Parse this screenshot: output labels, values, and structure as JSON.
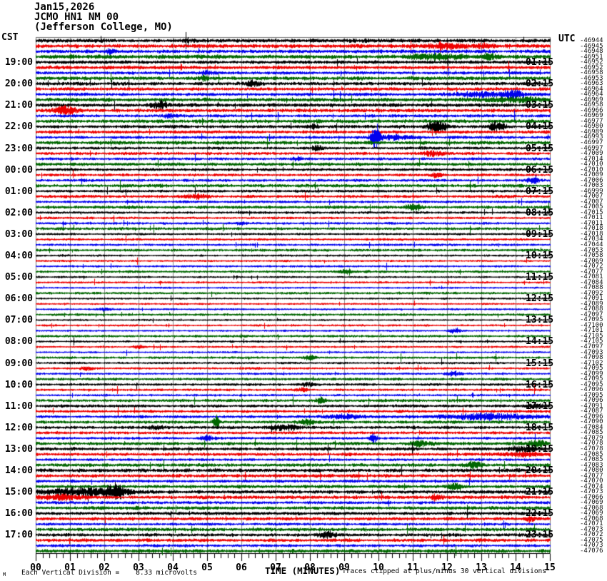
{
  "header": {
    "date_line": "Jan15,2026",
    "station_line": "JCMO HN1 NM 00",
    "location_line": "(Jefferson College, MO)"
  },
  "axes": {
    "left_tz": "CST",
    "right_tz": "UTC"
  },
  "footer": {
    "mark": "M",
    "scale_text": "Each Vertical Division =",
    "scale_value": "8.33 microvolts",
    "x_title": "TIME (MINUTES)",
    "clip_note": "Traces clipped at plus/minus 30 vertical divisions"
  },
  "chart_data": {
    "type": "helicorder-seismogram",
    "title": "JCMO HN1 NM 00 (Jefferson College, MO) Jan15,2026",
    "minutes_per_line": 15,
    "lines": 96,
    "first_line_start_cst": "18:00",
    "trace_color_cycle": [
      "#000000",
      "#ee0000",
      "#0000ee",
      "#006600"
    ],
    "grid_color": "#8a8a8a",
    "border_color": "#777777",
    "x_tick_labels": [
      "00",
      "01",
      "02",
      "03",
      "04",
      "05",
      "06",
      "07",
      "08",
      "09",
      "10",
      "11",
      "12",
      "13",
      "14",
      "15"
    ],
    "left_labels": [
      "19:00",
      "20:00",
      "21:00",
      "22:00",
      "23:00",
      "00:00",
      "01:00",
      "02:00",
      "03:00",
      "04:00",
      "05:00",
      "06:00",
      "07:00",
      "08:00",
      "09:00",
      "10:00",
      "11:00",
      "12:00",
      "13:00",
      "14:00",
      "15:00",
      "16:00",
      "17:00"
    ],
    "right_labels": [
      "01:15",
      "02:15",
      "03:15",
      "04:15",
      "05:15",
      "06:15",
      "07:15",
      "08:15",
      "09:15",
      "10:15",
      "11:15",
      "12:15",
      "13:15",
      "14:15",
      "15:15",
      "16:15",
      "17:15",
      "18:15",
      "19:15",
      "20:15",
      "21:15",
      "22:15",
      "23:15"
    ],
    "right_trace_offsets": [
      -46944,
      -46945,
      -46948,
      -46951,
      -46952,
      -46952,
      -46958,
      -46953,
      -46963,
      -46964,
      -46964,
      -46969,
      -46958,
      -46966,
      -46969,
      -46977,
      -46980,
      -46989,
      -46993,
      -46997,
      -46997,
      -47009,
      -47014,
      -47010,
      -47010,
      -47009,
      -47006,
      -47003,
      -46999,
      -47007,
      -47007,
      -47005,
      -47015,
      -47011,
      -47011,
      -47018,
      -47018,
      -47034,
      -47044,
      -47053,
      -47058,
      -47069,
      -47072,
      -47077,
      -47081,
      -47084,
      -47088,
      -47092,
      -47091,
      -47089,
      -47088,
      -47097,
      -47095,
      -47100,
      -47101,
      -47105,
      -47105,
      -47097,
      -47093,
      -47098,
      -47102,
      -47095,
      -47099,
      -47095,
      -47095,
      -47096,
      -47095,
      -47096,
      -47091,
      -47087,
      -47096,
      -47090,
      -47084,
      -47085,
      -47079,
      -47078,
      -47078,
      -47085,
      -47085,
      -47083,
      -47080,
      -47077,
      -47070,
      -47074,
      -47073,
      -47066,
      -47069,
      -47068,
      -47069,
      -47068,
      -47071,
      -47073,
      -47072,
      -47075,
      -47073,
      -47076
    ],
    "row_noise_amp": [
      2.0,
      2.0,
      1.8,
      2.1,
      1.8,
      1.8,
      1.7,
      2.0,
      1.8,
      1.7,
      1.7,
      2.0,
      1.9,
      1.8,
      1.6,
      1.9,
      1.6,
      1.6,
      1.5,
      1.8,
      1.5,
      1.5,
      1.4,
      1.7,
      1.5,
      1.4,
      1.4,
      1.7,
      1.4,
      1.5,
      1.3,
      1.6,
      1.3,
      1.3,
      1.3,
      1.5,
      1.2,
      1.2,
      1.2,
      1.4,
      1.1,
      1.1,
      1.1,
      1.3,
      1.0,
      1.1,
      1.0,
      1.3,
      1.0,
      1.0,
      1.0,
      1.3,
      1.0,
      1.1,
      1.0,
      1.3,
      1.1,
      1.1,
      1.0,
      1.3,
      1.2,
      1.2,
      1.1,
      1.4,
      1.3,
      1.3,
      1.2,
      1.5,
      1.5,
      1.4,
      1.5,
      1.6,
      1.6,
      1.5,
      1.4,
      1.7,
      1.7,
      1.6,
      1.4,
      1.8,
      1.9,
      1.8,
      1.5,
      1.8,
      1.8,
      1.8,
      1.5,
      1.8,
      1.7,
      1.7,
      1.4,
      1.8,
      1.7,
      1.7,
      1.5,
      1.9
    ],
    "events": [
      {
        "row": 2,
        "minute": 11.9,
        "width_min": 1.1,
        "amp": 4
      },
      {
        "row": 2,
        "minute": 13.1,
        "width_min": 0.4,
        "amp": 3
      },
      {
        "row": 3,
        "minute": 2.2,
        "width_min": 0.3,
        "amp": 3
      },
      {
        "row": 4,
        "minute": 11.6,
        "width_min": 1.4,
        "amp": 4
      },
      {
        "row": 4,
        "minute": 13.2,
        "width_min": 0.6,
        "amp": 3
      },
      {
        "row": 7,
        "minute": 5.0,
        "width_min": 0.4,
        "amp": 3
      },
      {
        "row": 8,
        "minute": 4.9,
        "width_min": 0.25,
        "amp": 4
      },
      {
        "row": 9,
        "minute": 6.35,
        "width_min": 0.35,
        "amp": 5
      },
      {
        "row": 11,
        "minute": 13.2,
        "width_min": 2.0,
        "amp": 3.5
      },
      {
        "row": 11,
        "minute": 13.9,
        "width_min": 0.4,
        "amp": 6
      },
      {
        "row": 12,
        "minute": 14.0,
        "width_min": 1.6,
        "amp": 3
      },
      {
        "row": 13,
        "minute": 3.6,
        "width_min": 0.5,
        "amp": 5
      },
      {
        "row": 14,
        "minute": 0.8,
        "width_min": 0.7,
        "amp": 6
      },
      {
        "row": 15,
        "minute": 3.9,
        "width_min": 0.4,
        "amp": 3
      },
      {
        "row": 17,
        "minute": 11.7,
        "width_min": 0.5,
        "amp": 10
      },
      {
        "row": 17,
        "minute": 13.45,
        "width_min": 0.4,
        "amp": 8
      },
      {
        "row": 17,
        "minute": 8.1,
        "width_min": 0.3,
        "amp": 4
      },
      {
        "row": 19,
        "minute": 9.9,
        "width_min": 0.22,
        "amp": 24
      },
      {
        "row": 19,
        "minute": 10.4,
        "width_min": 0.9,
        "amp": 4
      },
      {
        "row": 21,
        "minute": 8.2,
        "width_min": 0.3,
        "amp": 4
      },
      {
        "row": 22,
        "minute": 11.6,
        "width_min": 0.6,
        "amp": 4
      },
      {
        "row": 23,
        "minute": 7.6,
        "width_min": 0.3,
        "amp": 3
      },
      {
        "row": 26,
        "minute": 11.7,
        "width_min": 0.4,
        "amp": 3
      },
      {
        "row": 27,
        "minute": 14.5,
        "width_min": 0.3,
        "amp": 5
      },
      {
        "row": 30,
        "minute": 4.7,
        "width_min": 0.5,
        "amp": 4
      },
      {
        "row": 32,
        "minute": 11.0,
        "width_min": 0.4,
        "amp": 4
      },
      {
        "row": 35,
        "minute": 6.0,
        "width_min": 0.3,
        "amp": 2.5
      },
      {
        "row": 44,
        "minute": 9.0,
        "width_min": 0.3,
        "amp": 2.5
      },
      {
        "row": 51,
        "minute": 2.0,
        "width_min": 0.3,
        "amp": 2.5
      },
      {
        "row": 55,
        "minute": 12.2,
        "width_min": 0.3,
        "amp": 3
      },
      {
        "row": 58,
        "minute": 3.0,
        "width_min": 0.3,
        "amp": 2.5
      },
      {
        "row": 60,
        "minute": 8.0,
        "width_min": 0.3,
        "amp": 3
      },
      {
        "row": 62,
        "minute": 1.5,
        "width_min": 0.4,
        "amp": 3
      },
      {
        "row": 63,
        "minute": 12.2,
        "width_min": 0.4,
        "amp": 4
      },
      {
        "row": 65,
        "minute": 8.0,
        "width_min": 0.4,
        "amp": 3
      },
      {
        "row": 66,
        "minute": 7.8,
        "width_min": 0.3,
        "amp": 3
      },
      {
        "row": 68,
        "minute": 8.3,
        "width_min": 0.25,
        "amp": 5
      },
      {
        "row": 69,
        "minute": 14.6,
        "width_min": 0.5,
        "amp": 3
      },
      {
        "row": 71,
        "minute": 13.2,
        "width_min": 2.6,
        "amp": 4.5
      },
      {
        "row": 71,
        "minute": 9.0,
        "width_min": 1.0,
        "amp": 3
      },
      {
        "row": 72,
        "minute": 5.25,
        "width_min": 0.18,
        "amp": 9
      },
      {
        "row": 72,
        "minute": 7.9,
        "width_min": 0.4,
        "amp": 5
      },
      {
        "row": 73,
        "minute": 3.5,
        "width_min": 0.4,
        "amp": 3
      },
      {
        "row": 73,
        "minute": 7.2,
        "width_min": 0.8,
        "amp": 4
      },
      {
        "row": 75,
        "minute": 9.85,
        "width_min": 0.2,
        "amp": 9
      },
      {
        "row": 75,
        "minute": 5.0,
        "width_min": 0.4,
        "amp": 4
      },
      {
        "row": 76,
        "minute": 11.2,
        "width_min": 0.5,
        "amp": 5
      },
      {
        "row": 76,
        "minute": 14.6,
        "width_min": 0.5,
        "amp": 5
      },
      {
        "row": 77,
        "minute": 14.2,
        "width_min": 0.7,
        "amp": 4
      },
      {
        "row": 78,
        "minute": 14.2,
        "width_min": 1.2,
        "amp": 3
      },
      {
        "row": 80,
        "minute": 12.8,
        "width_min": 0.4,
        "amp": 6
      },
      {
        "row": 84,
        "minute": 12.2,
        "width_min": 0.4,
        "amp": 4
      },
      {
        "row": 85,
        "minute": 1.5,
        "width_min": 2.4,
        "amp": 6
      },
      {
        "row": 85,
        "minute": 2.35,
        "width_min": 0.5,
        "amp": 8
      },
      {
        "row": 86,
        "minute": 0.8,
        "width_min": 1.2,
        "amp": 4
      },
      {
        "row": 86,
        "minute": 11.7,
        "width_min": 0.3,
        "amp": 5
      },
      {
        "row": 90,
        "minute": 14.4,
        "width_min": 0.3,
        "amp": 4
      },
      {
        "row": 93,
        "minute": 8.5,
        "width_min": 0.5,
        "amp": 5
      }
    ]
  }
}
